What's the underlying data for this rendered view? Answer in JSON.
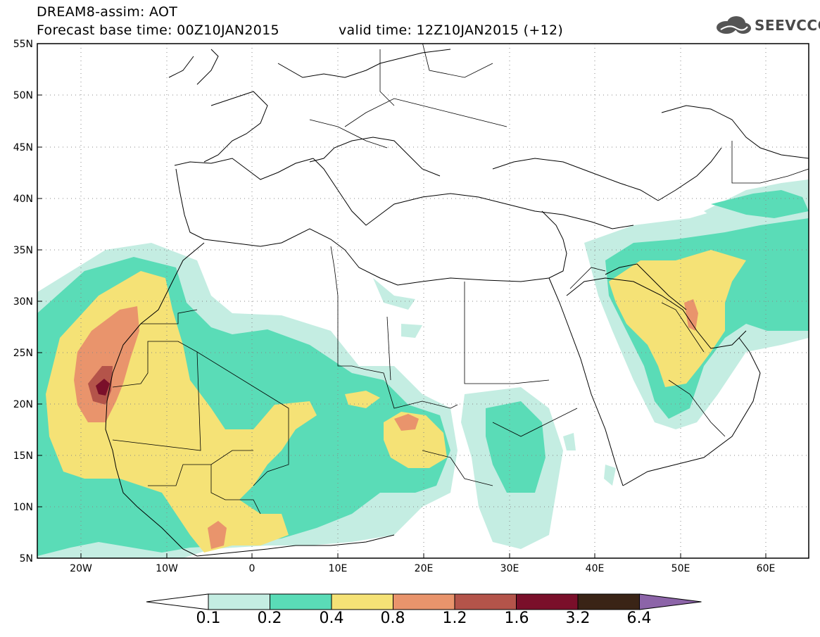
{
  "header": {
    "title": "DREAM8-assim: AOT",
    "base_time": "Forecast base time: 00Z10JAN2015",
    "valid_time": "valid time: 12Z10JAN2015 (+12)",
    "logo_text": "SEEVCCC",
    "logo_icon": "cloud-icon"
  },
  "map": {
    "lon_range": [
      -25,
      65
    ],
    "lat_range": [
      5,
      55
    ],
    "lat_labels": [
      "5N",
      "10N",
      "15N",
      "20N",
      "25N",
      "30N",
      "35N",
      "40N",
      "45N",
      "50N",
      "55N"
    ],
    "lon_labels": [
      "20W",
      "10W",
      "0",
      "10E",
      "20E",
      "30E",
      "40E",
      "50E",
      "60E"
    ]
  },
  "colorbar": {
    "labels": [
      "0.1",
      "0.2",
      "0.4",
      "0.8",
      "1.2",
      "1.6",
      "3.2",
      "6.4"
    ],
    "colors": [
      "#ffffff",
      "#c4ede2",
      "#5adcb7",
      "#f5e276",
      "#e9946c",
      "#b4544a",
      "#7a0f2a",
      "#3a2416",
      "#8c64a8"
    ]
  }
}
